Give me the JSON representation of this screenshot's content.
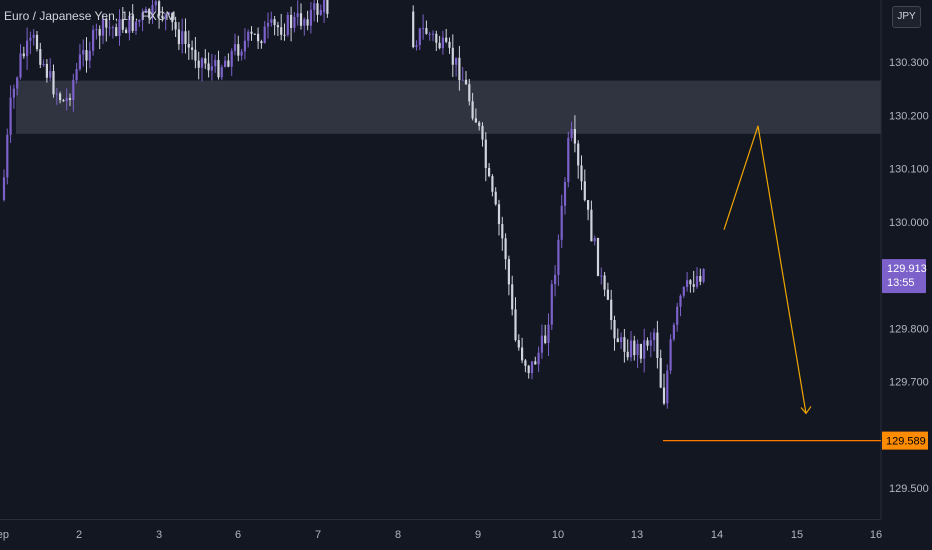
{
  "header": {
    "symbol_title": "Euro / Japanese Yen, 1h, FXCM",
    "currency_button": "JPY"
  },
  "colors": {
    "background": "#131722",
    "candle_up": "#7b61c9",
    "candle_down": "#d1d4dc",
    "zone": "#363a45",
    "projection": "#f0a500",
    "support_line": "#ff7b00",
    "support_label_bg": "#ff8c00",
    "price_label_bg": "#7b61c9"
  },
  "chart_data": {
    "type": "candlestick",
    "y_axis": {
      "ticks": [
        "130.300",
        "130.200",
        "130.100",
        "130.000",
        "129.800",
        "129.700",
        "129.500"
      ],
      "tick_values": [
        130.3,
        130.2,
        130.1,
        130.0,
        129.8,
        129.7,
        129.5
      ]
    },
    "x_axis": {
      "ticks": [
        "ep",
        "2",
        "3",
        "6",
        "7",
        "8",
        "9",
        "10",
        "13",
        "14",
        "15",
        "16"
      ]
    },
    "current_price": {
      "value": "129.913",
      "countdown": "13:55"
    },
    "support_level": {
      "value": "129.589"
    },
    "resistance_zone": {
      "low": 130.165,
      "high": 130.265
    },
    "projection_path": [
      {
        "x": "14",
        "y": 129.985
      },
      {
        "x": "14.5",
        "y": 130.18
      },
      {
        "x": "15.1",
        "y": 129.64
      }
    ]
  }
}
